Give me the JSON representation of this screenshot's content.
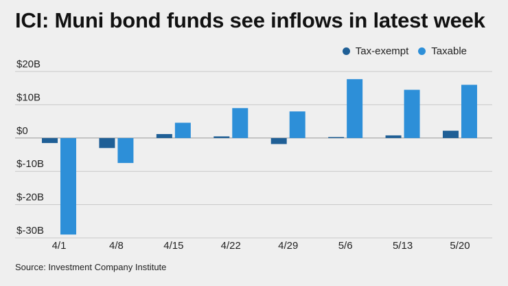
{
  "title": "ICI: Muni bond funds see inflows in latest week",
  "source": "Source: Investment Company Institute",
  "colors": {
    "background": "#efefef",
    "tax_exempt": "#1f5f96",
    "taxable": "#2d8fd8",
    "grid": "#c8c8c8"
  },
  "chart_data": {
    "type": "bar",
    "categories": [
      "4/1",
      "4/8",
      "4/15",
      "4/22",
      "4/29",
      "5/6",
      "5/13",
      "5/20"
    ],
    "series": [
      {
        "name": "Tax-exempt",
        "values": [
          -1.5,
          -3.0,
          1.2,
          0.5,
          -1.8,
          0.3,
          0.8,
          2.2
        ]
      },
      {
        "name": "Taxable",
        "values": [
          -29.0,
          -7.5,
          4.6,
          9.0,
          8.0,
          17.7,
          14.5,
          16.0
        ]
      }
    ],
    "ylim": [
      -30,
      20
    ],
    "yticks": [
      20,
      10,
      0,
      -10,
      -20,
      -30
    ],
    "ytick_labels": [
      "$20B",
      "$10B",
      "$0",
      "$-10B",
      "$-20B",
      "$-30B"
    ],
    "legend": "top-right",
    "grid": true
  }
}
